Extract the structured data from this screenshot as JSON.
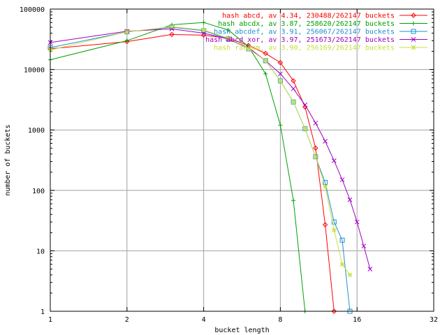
{
  "chart_data": {
    "type": "line",
    "xlabel": "bucket length",
    "ylabel": "number of buckets",
    "xscale": "log2",
    "yscale": "log10",
    "xlim": [
      1,
      32
    ],
    "ylim": [
      1,
      100000
    ],
    "grid": true,
    "legend_position": "top-right",
    "x_ticks": [
      "1",
      "2",
      "4",
      "8",
      "16",
      "32"
    ],
    "y_ticks": [
      "1",
      "10",
      "100",
      "1000",
      "10000",
      "100000"
    ],
    "series": [
      {
        "name": "hash abcd, av 4.34, 230488/262147 buckets",
        "color": "#ff0000",
        "marker": "diamond",
        "points": [
          [
            1,
            22000
          ],
          [
            2,
            29000
          ],
          [
            3,
            38000
          ],
          [
            4,
            37000
          ],
          [
            5,
            33000
          ],
          [
            6,
            25000
          ],
          [
            7,
            18500
          ],
          [
            8,
            13000
          ],
          [
            9,
            6500
          ],
          [
            10,
            2400
          ],
          [
            11,
            500
          ],
          [
            12,
            27
          ],
          [
            13,
            1
          ]
        ]
      },
      {
        "name": "hash abcdx, av 3.87, 258620/262147 buckets",
        "color": "#00a000",
        "marker": "plus",
        "points": [
          [
            1,
            14500
          ],
          [
            2,
            30000
          ],
          [
            3,
            55000
          ],
          [
            4,
            60000
          ],
          [
            5,
            45000
          ],
          [
            6,
            24000
          ],
          [
            7,
            8500
          ],
          [
            8,
            1200
          ],
          [
            9,
            68
          ],
          [
            10,
            1
          ]
        ]
      },
      {
        "name": "hash abcdef, av 3.91, 256067/262147 buckets",
        "color": "#1f8fd0",
        "marker": "square",
        "points": [
          [
            1,
            23000
          ],
          [
            2,
            42000
          ],
          [
            3,
            50000
          ],
          [
            4,
            44000
          ],
          [
            5,
            32000
          ],
          [
            6,
            22000
          ],
          [
            7,
            14000
          ],
          [
            8,
            6500
          ],
          [
            9,
            2900
          ],
          [
            10,
            1050
          ],
          [
            11,
            360
          ],
          [
            12,
            135
          ],
          [
            13,
            30
          ],
          [
            14,
            15
          ],
          [
            15,
            1
          ]
        ]
      },
      {
        "name": "hash abcd xor, av 3.97, 251673/262147 buckets",
        "color": "#a000c0",
        "marker": "x",
        "points": [
          [
            1,
            28000
          ],
          [
            2,
            43000
          ],
          [
            3,
            47000
          ],
          [
            4,
            40000
          ],
          [
            5,
            32000
          ],
          [
            6,
            23000
          ],
          [
            7,
            14000
          ],
          [
            8,
            8500
          ],
          [
            9,
            4800
          ],
          [
            10,
            2600
          ],
          [
            11,
            1300
          ],
          [
            12,
            650
          ],
          [
            13,
            310
          ],
          [
            14,
            150
          ],
          [
            15,
            70
          ],
          [
            16,
            30
          ],
          [
            17,
            12
          ],
          [
            18,
            5
          ]
        ]
      },
      {
        "name": "hash random, av 3.90, 256169/262147 buckets",
        "color": "#c8e040",
        "marker": "star",
        "points": [
          [
            1,
            21000
          ],
          [
            2,
            42000
          ],
          [
            3,
            51000
          ],
          [
            4,
            45000
          ],
          [
            5,
            33000
          ],
          [
            6,
            22000
          ],
          [
            7,
            14000
          ],
          [
            8,
            6500
          ],
          [
            9,
            2900
          ],
          [
            10,
            1050
          ],
          [
            11,
            360
          ],
          [
            12,
            115
          ],
          [
            13,
            22
          ],
          [
            14,
            6
          ],
          [
            15,
            4
          ]
        ]
      }
    ]
  }
}
